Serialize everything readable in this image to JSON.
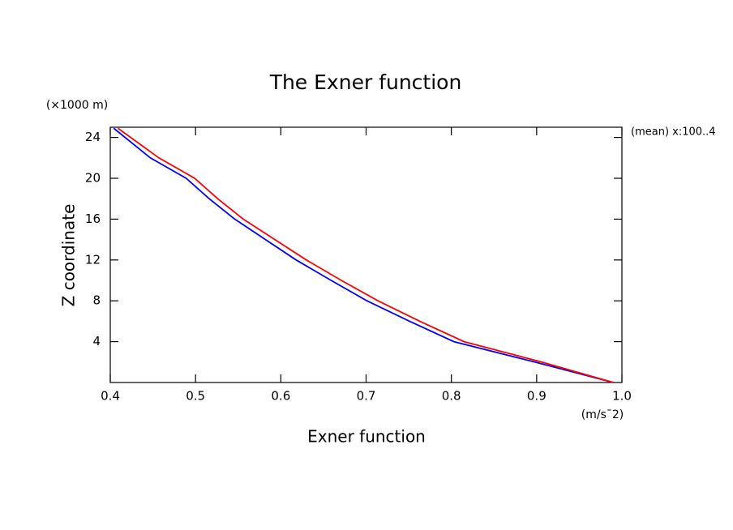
{
  "chart_data": {
    "type": "line",
    "title": "The Exner function",
    "x_label": "Exner function",
    "y_label": "Z coordinate",
    "x_unit": "(m/s¯2)",
    "y_unit": "(×1000 m)",
    "annotation": "(mean) x:100..4",
    "z": [
      0,
      2,
      4,
      6,
      8,
      10,
      12,
      14,
      16,
      18,
      20,
      22,
      24.9
    ],
    "series": [
      {
        "color": "#0000ff",
        "values": [
          0.99,
          0.898,
          0.803,
          0.751,
          0.701,
          0.659,
          0.618,
          0.582,
          0.546,
          0.516,
          0.489,
          0.447,
          0.404
        ]
      },
      {
        "color": "#ff0000",
        "values": [
          0.99,
          0.906,
          0.815,
          0.763,
          0.714,
          0.671,
          0.63,
          0.593,
          0.556,
          0.526,
          0.499,
          0.457,
          0.409
        ]
      }
    ],
    "xlim": [
      0.4,
      1.0
    ],
    "ylim": [
      0,
      25
    ],
    "xticks": [
      0.4,
      0.5,
      0.6,
      0.7,
      0.8,
      0.9,
      {
        "value": 1,
        "label": "1.0"
      }
    ],
    "yticks": [
      4,
      8,
      12,
      16,
      20,
      24
    ]
  }
}
